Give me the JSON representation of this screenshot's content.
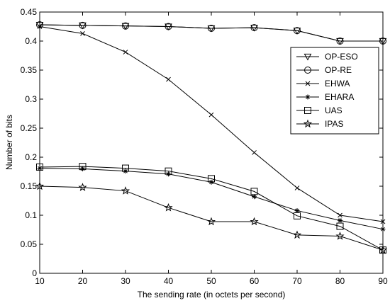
{
  "chart_data": {
    "type": "line",
    "xlabel": "The sending rate (in octets per second)",
    "ylabel": "Number of bits",
    "x": [
      10,
      20,
      30,
      40,
      50,
      60,
      70,
      80,
      90
    ],
    "xlim": [
      10,
      90
    ],
    "ylim": [
      0,
      0.45
    ],
    "xticks": [
      "10",
      "20",
      "30",
      "40",
      "50",
      "60",
      "70",
      "80",
      "90"
    ],
    "yticks": [
      "0",
      "0.05",
      "0.1",
      "0.15",
      "0.2",
      "0.25",
      "0.3",
      "0.35",
      "0.4",
      "0.45"
    ],
    "grid": false,
    "legend_position": "top-right",
    "line_color": "#000000",
    "series": [
      {
        "name": "OP-ESO",
        "marker": "triangle-down",
        "values": [
          0.428,
          0.427,
          0.426,
          0.425,
          0.422,
          0.423,
          0.418,
          0.4,
          0.4
        ]
      },
      {
        "name": "OP-RE",
        "marker": "circle",
        "values": [
          0.428,
          0.427,
          0.426,
          0.425,
          0.422,
          0.423,
          0.418,
          0.4,
          0.4
        ]
      },
      {
        "name": "EHWA",
        "marker": "x",
        "values": [
          0.425,
          0.413,
          0.381,
          0.334,
          0.273,
          0.208,
          0.147,
          0.1,
          0.089
        ]
      },
      {
        "name": "EHARA",
        "marker": "star",
        "values": [
          0.181,
          0.18,
          0.176,
          0.171,
          0.157,
          0.132,
          0.108,
          0.091,
          0.076
        ]
      },
      {
        "name": "UAS",
        "marker": "square",
        "values": [
          0.183,
          0.184,
          0.181,
          0.176,
          0.163,
          0.141,
          0.099,
          0.081,
          0.04
        ]
      },
      {
        "name": "IPAS",
        "marker": "pentagram",
        "values": [
          0.15,
          0.148,
          0.142,
          0.113,
          0.089,
          0.089,
          0.066,
          0.064,
          0.04
        ]
      }
    ]
  }
}
